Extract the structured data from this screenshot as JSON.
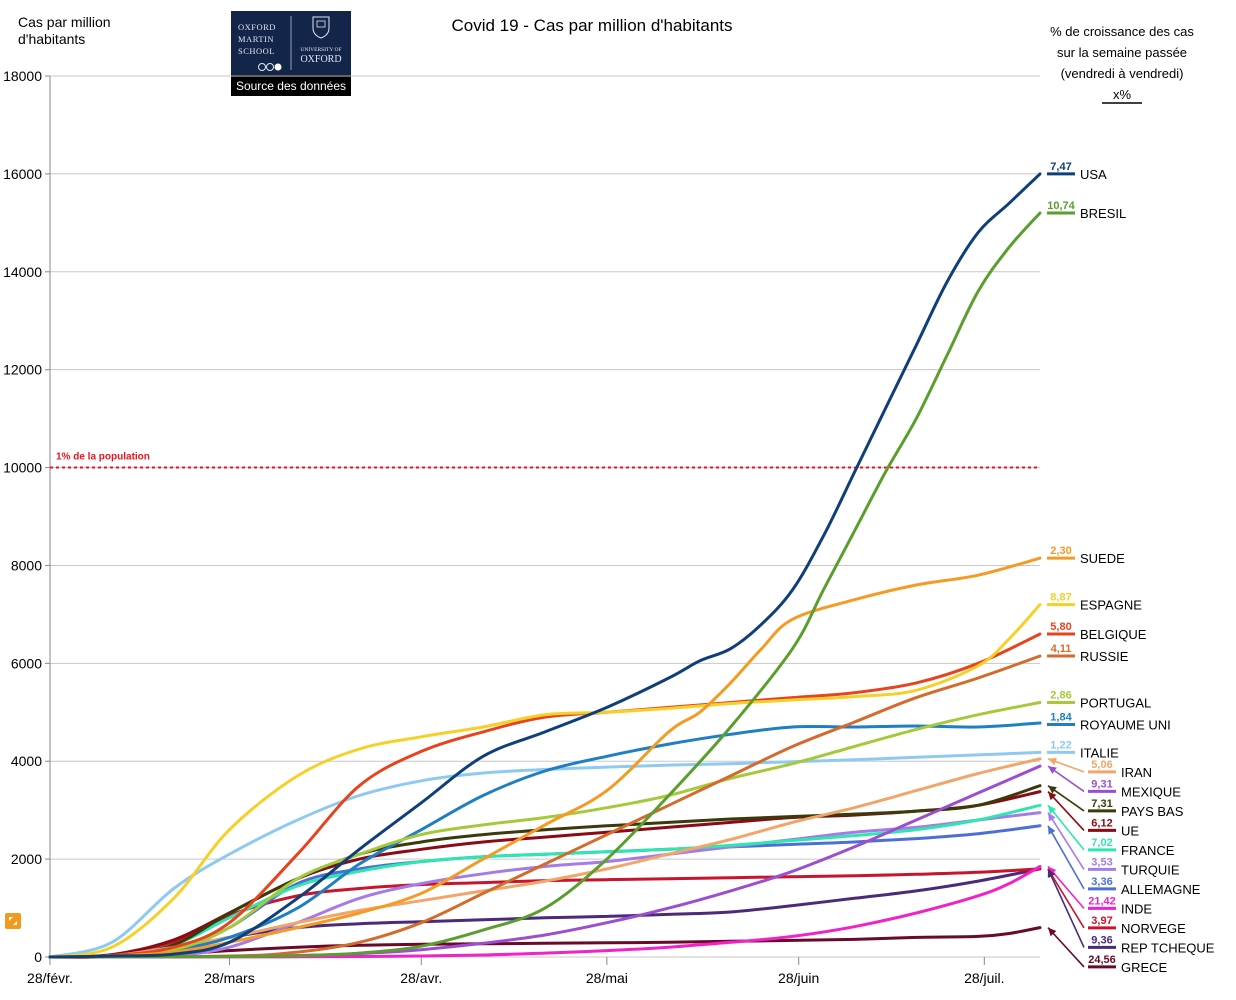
{
  "chart_data": {
    "type": "line",
    "title": "Covid 19 - Cas par million d'habitants",
    "ylabel_lines": [
      "Cas par million",
      "d'habitants"
    ],
    "ylim": [
      0,
      18000
    ],
    "yticks": [
      0,
      2000,
      4000,
      6000,
      8000,
      10000,
      12000,
      14000,
      16000,
      18000
    ],
    "xlim": [
      0,
      160
    ],
    "xticks": [
      {
        "label": "28/févr.",
        "x": 0
      },
      {
        "label": "28/mars",
        "x": 29
      },
      {
        "label": "28/avr.",
        "x": 60
      },
      {
        "label": "28/mai",
        "x": 90
      },
      {
        "label": "28/juin",
        "x": 121
      },
      {
        "label": "28/juil.",
        "x": 151
      }
    ],
    "logo": {
      "lines": [
        "OXFORD",
        "MARTIN",
        "SCHOOL"
      ],
      "right_lines": [
        "UNIVERSITY OF",
        "OXFORD"
      ],
      "caption": "Source des données"
    },
    "legend_header": [
      "% de croissance des cas",
      "sur la semaine passée",
      "(vendredi à vendredi)",
      "x%"
    ],
    "reference_line": {
      "value": 10000,
      "label": "1% de la population",
      "color": "#e8141e"
    },
    "series": [
      {
        "name": "USA",
        "growth": "7,47",
        "color": "#0f3f7a",
        "x": [
          0,
          10,
          20,
          29,
          40,
          50,
          60,
          70,
          80,
          90,
          100,
          105,
          110,
          115,
          120,
          125,
          130,
          135,
          140,
          145,
          150,
          155,
          160
        ],
        "y": [
          0,
          20,
          60,
          300,
          1200,
          2200,
          3150,
          4100,
          4600,
          5100,
          5700,
          6050,
          6300,
          6800,
          7500,
          8600,
          9900,
          11200,
          12500,
          13800,
          14800,
          15400,
          16000
        ]
      },
      {
        "name": "BRESIL",
        "growth": "10,74",
        "color": "#5a9e2e",
        "x": [
          0,
          29,
          40,
          50,
          60,
          70,
          80,
          90,
          100,
          110,
          120,
          125,
          130,
          135,
          140,
          145,
          150,
          155,
          160
        ],
        "y": [
          0,
          10,
          25,
          80,
          220,
          550,
          1000,
          2000,
          3300,
          4700,
          6300,
          7500,
          8700,
          9900,
          11000,
          12300,
          13600,
          14500,
          15200
        ]
      },
      {
        "name": "SUEDE",
        "growth": "2,30",
        "color": "#f59a23",
        "x": [
          0,
          10,
          20,
          29,
          40,
          50,
          60,
          70,
          80,
          90,
          100,
          105,
          110,
          115,
          120,
          130,
          140,
          150,
          160
        ],
        "y": [
          0,
          20,
          100,
          300,
          600,
          900,
          1300,
          2000,
          2700,
          3400,
          4600,
          5000,
          5600,
          6300,
          6900,
          7300,
          7600,
          7800,
          8150
        ]
      },
      {
        "name": "ESPAGNE",
        "growth": "8,87",
        "color": "#f7d027",
        "x": [
          0,
          10,
          20,
          29,
          40,
          50,
          60,
          70,
          80,
          90,
          100,
          110,
          120,
          130,
          140,
          150,
          155,
          160
        ],
        "y": [
          0,
          200,
          1200,
          2600,
          3700,
          4250,
          4500,
          4700,
          4950,
          5000,
          5080,
          5180,
          5250,
          5320,
          5450,
          5950,
          6500,
          7200
        ]
      },
      {
        "name": "BELGIQUE",
        "growth": "5,80",
        "color": "#e8431d",
        "x": [
          0,
          10,
          20,
          29,
          40,
          50,
          60,
          70,
          80,
          90,
          100,
          110,
          120,
          130,
          140,
          150,
          160
        ],
        "y": [
          0,
          30,
          200,
          700,
          2100,
          3500,
          4200,
          4600,
          4900,
          5000,
          5100,
          5200,
          5300,
          5400,
          5600,
          6000,
          6600
        ]
      },
      {
        "name": "RUSSIE",
        "growth": "4,11",
        "color": "#d46a2c",
        "x": [
          0,
          29,
          40,
          50,
          60,
          70,
          80,
          90,
          100,
          110,
          120,
          130,
          140,
          150,
          160
        ],
        "y": [
          0,
          20,
          100,
          300,
          700,
          1300,
          1900,
          2500,
          3100,
          3700,
          4300,
          4800,
          5300,
          5700,
          6150
        ]
      },
      {
        "name": "PORTUGAL",
        "growth": "2,86",
        "color": "#a6c93c",
        "x": [
          0,
          10,
          20,
          29,
          40,
          50,
          60,
          70,
          80,
          90,
          100,
          110,
          120,
          130,
          140,
          150,
          160
        ],
        "y": [
          0,
          20,
          150,
          600,
          1600,
          2100,
          2500,
          2700,
          2850,
          3050,
          3300,
          3650,
          3950,
          4300,
          4650,
          4950,
          5200
        ]
      },
      {
        "name": "ROYAUME UNI",
        "growth": "1,84",
        "color": "#1f7fc2",
        "x": [
          0,
          10,
          20,
          29,
          40,
          50,
          60,
          70,
          80,
          90,
          100,
          110,
          120,
          130,
          140,
          150,
          160
        ],
        "y": [
          0,
          20,
          150,
          400,
          1000,
          1900,
          2600,
          3300,
          3800,
          4100,
          4350,
          4550,
          4700,
          4700,
          4720,
          4700,
          4780
        ]
      },
      {
        "name": "ITALIE",
        "growth": "1,22",
        "color": "#8ec9f2",
        "x": [
          0,
          10,
          20,
          29,
          40,
          50,
          60,
          70,
          80,
          90,
          100,
          110,
          120,
          130,
          140,
          150,
          160
        ],
        "y": [
          0,
          300,
          1400,
          2100,
          2800,
          3300,
          3600,
          3760,
          3830,
          3880,
          3920,
          3950,
          3990,
          4030,
          4080,
          4130,
          4180
        ]
      },
      {
        "name": "IRAN",
        "growth": "5,06",
        "color": "#f2a56a",
        "x": [
          0,
          10,
          20,
          29,
          40,
          50,
          60,
          70,
          80,
          90,
          100,
          110,
          120,
          130,
          140,
          150,
          160
        ],
        "y": [
          0,
          30,
          200,
          400,
          700,
          950,
          1150,
          1350,
          1550,
          1800,
          2100,
          2400,
          2750,
          3050,
          3400,
          3750,
          4050
        ]
      },
      {
        "name": "MEXIQUE",
        "growth": "9,31",
        "color": "#9b4fd0",
        "x": [
          0,
          29,
          40,
          50,
          60,
          70,
          80,
          90,
          100,
          110,
          120,
          130,
          140,
          150,
          160
        ],
        "y": [
          0,
          10,
          30,
          70,
          150,
          280,
          450,
          700,
          1000,
          1350,
          1750,
          2250,
          2800,
          3350,
          3900
        ]
      },
      {
        "name": "PAYS BAS",
        "growth": "7,31",
        "color": "#3a3a0a",
        "x": [
          0,
          10,
          20,
          29,
          40,
          50,
          60,
          70,
          80,
          90,
          100,
          110,
          120,
          130,
          140,
          150,
          160
        ],
        "y": [
          0,
          30,
          250,
          900,
          1600,
          2100,
          2350,
          2500,
          2600,
          2680,
          2750,
          2820,
          2870,
          2920,
          2980,
          3100,
          3500
        ]
      },
      {
        "name": "UE",
        "growth": "6,12",
        "color": "#8b0a14",
        "x": [
          0,
          10,
          20,
          29,
          40,
          50,
          60,
          70,
          80,
          90,
          100,
          110,
          120,
          130,
          140,
          150,
          160
        ],
        "y": [
          0,
          50,
          350,
          900,
          1600,
          2000,
          2200,
          2350,
          2450,
          2550,
          2650,
          2750,
          2850,
          2900,
          2980,
          3100,
          3380
        ]
      },
      {
        "name": "FRANCE",
        "growth": "7,02",
        "color": "#2ee6b0",
        "x": [
          0,
          10,
          20,
          29,
          40,
          50,
          60,
          70,
          80,
          90,
          100,
          110,
          120,
          130,
          140,
          150,
          160
        ],
        "y": [
          0,
          30,
          250,
          800,
          1450,
          1750,
          1950,
          2050,
          2100,
          2150,
          2200,
          2280,
          2380,
          2480,
          2600,
          2800,
          3100
        ]
      },
      {
        "name": "TURQUIE",
        "growth": "3,53",
        "color": "#a57be8",
        "x": [
          0,
          10,
          20,
          29,
          40,
          50,
          60,
          70,
          80,
          90,
          100,
          110,
          120,
          130,
          140,
          150,
          160
        ],
        "y": [
          0,
          5,
          30,
          200,
          700,
          1200,
          1500,
          1700,
          1850,
          1950,
          2100,
          2250,
          2400,
          2550,
          2650,
          2800,
          2950
        ]
      },
      {
        "name": "ALLEMAGNE",
        "growth": "3,36",
        "color": "#4b6fd6",
        "x": [
          0,
          10,
          20,
          29,
          40,
          50,
          60,
          70,
          80,
          90,
          100,
          110,
          120,
          130,
          140,
          150,
          160
        ],
        "y": [
          0,
          20,
          150,
          600,
          1500,
          1800,
          1950,
          2050,
          2100,
          2150,
          2200,
          2250,
          2300,
          2350,
          2420,
          2520,
          2680
        ]
      },
      {
        "name": "INDE",
        "growth": "21,42",
        "color": "#f023c8",
        "x": [
          0,
          29,
          40,
          50,
          60,
          70,
          80,
          90,
          100,
          110,
          120,
          130,
          140,
          150,
          155,
          160
        ],
        "y": [
          0,
          2,
          5,
          10,
          20,
          40,
          80,
          130,
          200,
          300,
          420,
          620,
          900,
          1250,
          1500,
          1850
        ]
      },
      {
        "name": "NORVEGE",
        "growth": "3,97",
        "color": "#c8142c",
        "x": [
          0,
          10,
          20,
          29,
          40,
          50,
          60,
          70,
          80,
          90,
          100,
          110,
          120,
          130,
          140,
          150,
          160
        ],
        "y": [
          0,
          20,
          300,
          850,
          1250,
          1400,
          1480,
          1520,
          1560,
          1580,
          1600,
          1620,
          1640,
          1660,
          1690,
          1730,
          1800
        ]
      },
      {
        "name": "REP TCHEQUE",
        "growth": "9,36",
        "color": "#4b2a7a",
        "x": [
          0,
          10,
          20,
          29,
          40,
          50,
          60,
          70,
          80,
          90,
          100,
          110,
          120,
          130,
          140,
          150,
          160
        ],
        "y": [
          0,
          20,
          150,
          400,
          600,
          680,
          720,
          760,
          800,
          830,
          870,
          920,
          1050,
          1200,
          1350,
          1550,
          1800
        ]
      },
      {
        "name": "GRECE",
        "growth": "24,56",
        "color": "#6a0a2a",
        "x": [
          0,
          10,
          20,
          29,
          40,
          50,
          60,
          70,
          80,
          90,
          100,
          110,
          120,
          130,
          140,
          150,
          155,
          160
        ],
        "y": [
          0,
          10,
          60,
          130,
          200,
          240,
          260,
          270,
          280,
          290,
          300,
          320,
          340,
          360,
          400,
          420,
          480,
          600
        ]
      }
    ]
  }
}
